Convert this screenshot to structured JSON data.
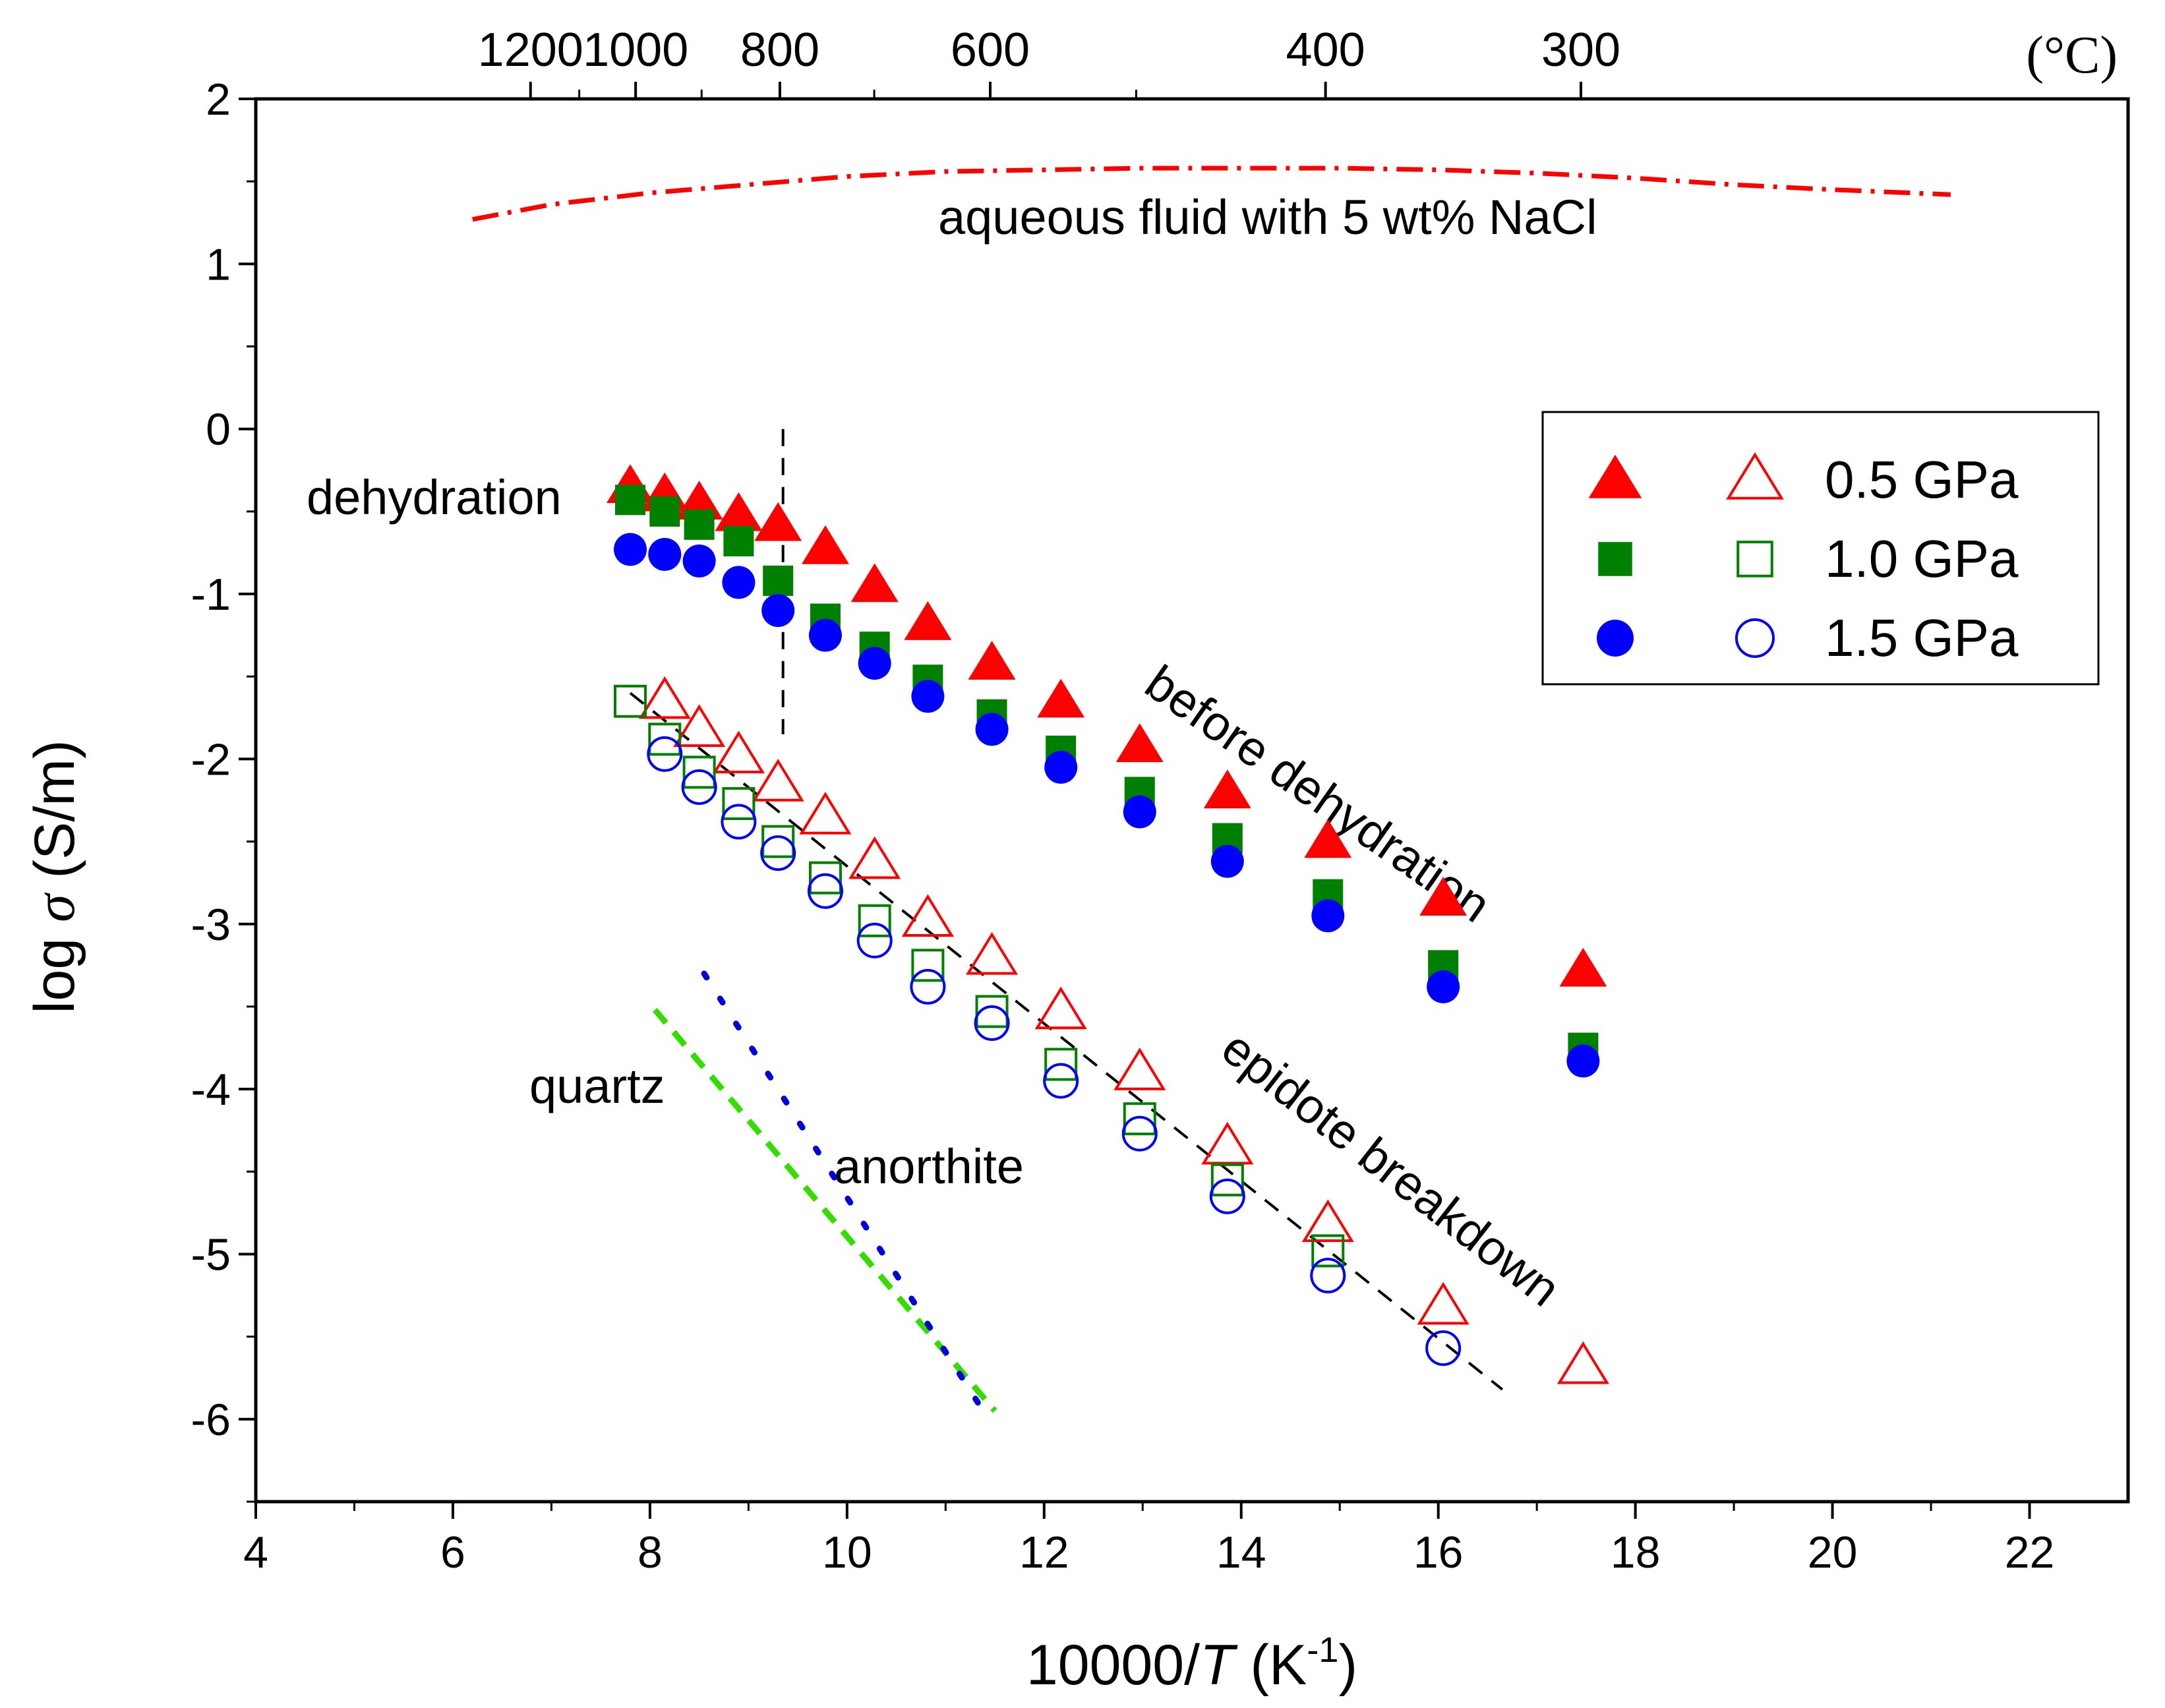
{
  "chart_data": {
    "type": "scatter",
    "xlabel_main": "10000/",
    "xlabel_var": "T",
    "xlabel_unit_open": " (K",
    "xlabel_exp": "-1",
    "xlabel_close": ")",
    "ylabel_main": "log ",
    "ylabel_var": "σ",
    "ylabel_unit": " (S/m)",
    "xlim": [
      4,
      23
    ],
    "ylim": [
      -6.5,
      2
    ],
    "x_ticks": [
      4,
      6,
      8,
      10,
      12,
      14,
      16,
      18,
      20,
      22
    ],
    "x_tick_labels": [
      "4",
      "6",
      "8",
      "10",
      "12",
      "14",
      "16",
      "18",
      "20",
      "22"
    ],
    "y_ticks": [
      2,
      1,
      0,
      -1,
      -2,
      -3,
      -4,
      -5,
      -6
    ],
    "y_tick_labels": [
      "2",
      "1",
      "0",
      "-1",
      "-2",
      "-3",
      "-4",
      "-5",
      "-6"
    ],
    "top_axis": {
      "unit": "(°C)",
      "labels": [
        {
          "celsius": 1200,
          "text": "1200"
        },
        {
          "celsius": 1000,
          "text": "1000"
        },
        {
          "celsius": 800,
          "text": "800"
        },
        {
          "celsius": 600,
          "text": "600"
        },
        {
          "celsius": 400,
          "text": "400"
        },
        {
          "celsius": 300,
          "text": "300"
        }
      ],
      "minor_celsius": [
        1100,
        900,
        700,
        500
      ]
    },
    "series": [
      {
        "name": "0.5 GPa before dehydration",
        "marker": "triangle",
        "filled": true,
        "color": "#ff0000",
        "x": [
          7.8,
          8.15,
          8.5,
          8.9,
          9.3,
          9.78,
          10.28,
          10.82,
          11.47,
          12.17,
          12.97,
          13.86,
          14.88,
          16.05,
          17.47
        ],
        "y": [
          -0.35,
          -0.4,
          -0.45,
          -0.52,
          -0.58,
          -0.72,
          -0.95,
          -1.18,
          -1.42,
          -1.65,
          -1.92,
          -2.2,
          -2.5,
          -2.85,
          -3.28
        ]
      },
      {
        "name": "1.0 GPa before dehydration",
        "marker": "square",
        "filled": true,
        "color": "#008000",
        "x": [
          7.8,
          8.15,
          8.5,
          8.9,
          9.3,
          9.78,
          10.28,
          10.82,
          11.47,
          12.17,
          12.97,
          13.86,
          14.88,
          16.05,
          17.47
        ],
        "y": [
          -0.43,
          -0.5,
          -0.58,
          -0.68,
          -0.92,
          -1.15,
          -1.32,
          -1.52,
          -1.73,
          -1.95,
          -2.2,
          -2.48,
          -2.82,
          -3.25,
          -3.75
        ]
      },
      {
        "name": "1.5 GPa before dehydration",
        "marker": "circle",
        "filled": true,
        "color": "#0000ff",
        "x": [
          7.8,
          8.15,
          8.5,
          8.9,
          9.3,
          9.78,
          10.28,
          10.82,
          11.47,
          12.17,
          12.97,
          13.86,
          14.88,
          16.05,
          17.47
        ],
        "y": [
          -0.73,
          -0.76,
          -0.8,
          -0.93,
          -1.1,
          -1.25,
          -1.42,
          -1.62,
          -1.82,
          -2.05,
          -2.32,
          -2.62,
          -2.95,
          -3.38,
          -3.83
        ]
      },
      {
        "name": "0.5 GPa epidote breakdown",
        "marker": "triangle",
        "filled": false,
        "color": "#ff0000",
        "x": [
          8.15,
          8.5,
          8.9,
          9.3,
          9.78,
          10.28,
          10.82,
          11.47,
          12.17,
          12.97,
          13.86,
          14.88,
          16.05,
          17.47
        ],
        "y": [
          -1.65,
          -1.82,
          -1.98,
          -2.15,
          -2.35,
          -2.62,
          -2.97,
          -3.2,
          -3.53,
          -3.9,
          -4.35,
          -4.82,
          -5.32,
          -5.68
        ]
      },
      {
        "name": "1.0 GPa epidote breakdown",
        "marker": "square",
        "filled": false,
        "color": "#008000",
        "x": [
          7.8,
          8.15,
          8.5,
          8.9,
          9.3,
          9.78,
          10.28,
          10.82,
          11.47,
          12.17,
          12.97,
          13.86,
          14.88
        ],
        "y": [
          -1.65,
          -1.88,
          -2.08,
          -2.27,
          -2.5,
          -2.72,
          -2.98,
          -3.25,
          -3.53,
          -3.85,
          -4.18,
          -4.55,
          -4.98
        ]
      },
      {
        "name": "1.5 GPa epidote breakdown",
        "marker": "circle",
        "filled": false,
        "color": "#0000ff",
        "x": [
          8.15,
          8.5,
          8.9,
          9.3,
          9.78,
          10.28,
          10.82,
          11.47,
          12.17,
          12.97,
          13.86,
          14.88,
          16.05
        ],
        "y": [
          -1.97,
          -2.17,
          -2.38,
          -2.57,
          -2.8,
          -3.1,
          -3.38,
          -3.6,
          -3.95,
          -4.27,
          -4.65,
          -5.13,
          -5.57
        ]
      }
    ],
    "lines": [
      {
        "name": "aqueous fluid with 5 wt% NaCl",
        "style": "dashdot",
        "color": "#ff0000",
        "x": [
          6.2,
          7,
          8,
          9,
          10,
          11,
          12,
          13,
          14,
          15,
          16,
          17,
          18,
          19,
          20,
          21.2
        ],
        "y": [
          1.27,
          1.36,
          1.43,
          1.48,
          1.53,
          1.56,
          1.57,
          1.58,
          1.58,
          1.58,
          1.57,
          1.55,
          1.52,
          1.48,
          1.45,
          1.42
        ]
      },
      {
        "name": "epidote breakdown fit",
        "style": "dash",
        "color": "#000000",
        "x": [
          7.8,
          16.65
        ],
        "y": [
          -1.6,
          -5.82
        ]
      },
      {
        "name": "dehydration boundary",
        "style": "dash",
        "color": "#000000",
        "x": [
          9.35,
          9.35
        ],
        "y": [
          0,
          -1.85
        ]
      },
      {
        "name": "quartz",
        "style": "dash",
        "color": "#33dd00",
        "x": [
          8.05,
          11.5
        ],
        "y": [
          -3.52,
          -5.95
        ]
      },
      {
        "name": "anorthite",
        "style": "dot",
        "color": "#0000dd",
        "x": [
          8.55,
          11.35
        ],
        "y": [
          -3.3,
          -5.92
        ]
      }
    ],
    "annotations": {
      "aqueous": "aqueous fluid with 5 wt% NaCl",
      "dehydration": "dehydration",
      "before_dehydration": "before dehydration",
      "epidote_breakdown": "epidote breakdown",
      "quartz": "quartz",
      "anorthite": "anorthite"
    },
    "legend": {
      "position": "right",
      "entries": [
        {
          "label": "0.5 GPa",
          "marker": "triangle",
          "color": "#ff0000"
        },
        {
          "label": "1.0 GPa",
          "marker": "square",
          "color": "#008000"
        },
        {
          "label": "1.5 GPa",
          "marker": "circle",
          "color": "#0000ff"
        }
      ]
    }
  }
}
